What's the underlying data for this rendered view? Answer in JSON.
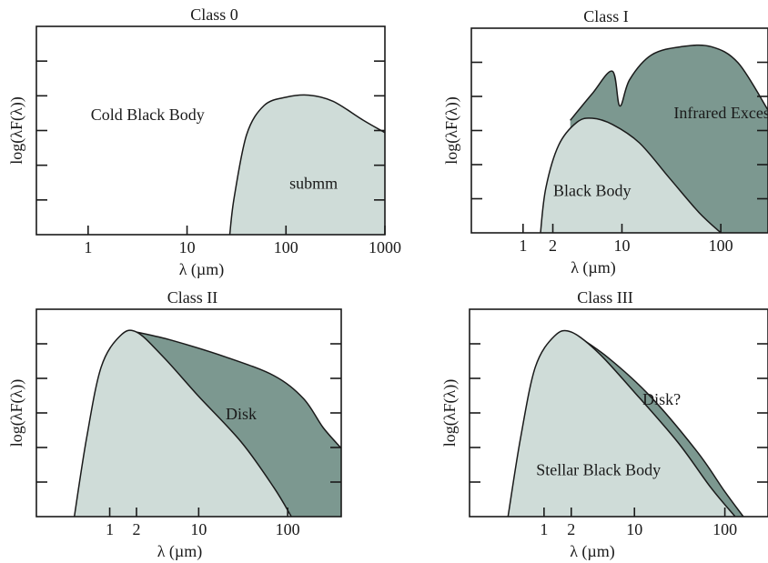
{
  "colors": {
    "light": "#cfdcd8",
    "dark": "#7c9890",
    "line": "#1a1a1a"
  },
  "chart_data": [
    {
      "type": "area",
      "title": "Class 0",
      "xlabel": "λ (µm)",
      "ylabel": "log(λF(λ))",
      "xscale": "log",
      "xticks": [
        "1",
        "10",
        "100",
        "1000"
      ],
      "xlim": [
        0.3,
        1000
      ],
      "ylim": [
        0,
        1
      ],
      "series": [
        {
          "color": "light",
          "points": [
            [
              27,
              0
            ],
            [
              30,
              0.18
            ],
            [
              40,
              0.48
            ],
            [
              60,
              0.62
            ],
            [
              100,
              0.66
            ],
            [
              170,
              0.67
            ],
            [
              300,
              0.64
            ],
            [
              600,
              0.55
            ],
            [
              1000,
              0.49
            ]
          ]
        }
      ],
      "annotations": [
        {
          "text": "Cold Black Body",
          "x": 4,
          "y": 0.55
        },
        {
          "text": "submm",
          "x": 190,
          "y": 0.22
        }
      ]
    },
    {
      "type": "area",
      "title": "Class I",
      "xlabel": "λ (µm)",
      "ylabel": "log(λF(λ))",
      "xscale": "log",
      "xticks": [
        "1",
        "2",
        "10",
        "100"
      ],
      "xlim": [
        0.3,
        300
      ],
      "ylim": [
        0,
        1
      ],
      "series": [
        {
          "color": "dark",
          "points": [
            [
              3,
              0.55
            ],
            [
              5,
              0.68
            ],
            [
              8,
              0.79
            ],
            [
              9.5,
              0.62
            ],
            [
              12,
              0.75
            ],
            [
              20,
              0.87
            ],
            [
              40,
              0.91
            ],
            [
              80,
              0.91
            ],
            [
              150,
              0.83
            ],
            [
              300,
              0.6
            ]
          ]
        },
        {
          "color": "light",
          "points": [
            [
              1.5,
              0
            ],
            [
              1.7,
              0.22
            ],
            [
              2.3,
              0.43
            ],
            [
              3.5,
              0.54
            ],
            [
              5,
              0.56
            ],
            [
              8,
              0.53
            ],
            [
              15,
              0.44
            ],
            [
              30,
              0.27
            ],
            [
              60,
              0.1
            ],
            [
              100,
              0
            ]
          ]
        }
      ],
      "annotations": [
        {
          "text": "Infrared Excess",
          "x": 110,
          "y": 0.56
        },
        {
          "text": "Black Body",
          "x": 5,
          "y": 0.18
        }
      ]
    },
    {
      "type": "area",
      "title": "Class II",
      "xlabel": "λ (µm)",
      "ylabel": "log(λF(λ))",
      "xscale": "log",
      "xticks": [
        "1",
        "2",
        "10",
        "100"
      ],
      "xlim": [
        0.15,
        400
      ],
      "ylim": [
        0,
        1
      ],
      "series": [
        {
          "color": "dark",
          "points": [
            [
              2,
              0.89
            ],
            [
              5,
              0.85
            ],
            [
              20,
              0.77
            ],
            [
              70,
              0.68
            ],
            [
              150,
              0.57
            ],
            [
              250,
              0.43
            ],
            [
              400,
              0.33
            ]
          ]
        },
        {
          "color": "light",
          "points": [
            [
              0.4,
              0
            ],
            [
              0.55,
              0.38
            ],
            [
              0.8,
              0.72
            ],
            [
              1.3,
              0.87
            ],
            [
              2,
              0.89
            ],
            [
              4,
              0.77
            ],
            [
              10,
              0.58
            ],
            [
              30,
              0.36
            ],
            [
              70,
              0.14
            ],
            [
              110,
              0
            ]
          ]
        }
      ],
      "annotations": [
        {
          "text": "Disk",
          "x": 30,
          "y": 0.47
        },
        {
          "text": "",
          "x": 0,
          "y": 0
        }
      ]
    },
    {
      "type": "area",
      "title": "Class III",
      "xlabel": "λ (µm)",
      "ylabel": "log(λF(λ))",
      "xscale": "log",
      "xticks": [
        "1",
        "2",
        "10",
        "100"
      ],
      "xlim": [
        0.15,
        300
      ],
      "ylim": [
        0,
        1
      ],
      "series": [
        {
          "color": "dark",
          "points": [
            [
              2,
              0.89
            ],
            [
              5,
              0.77
            ],
            [
              15,
              0.58
            ],
            [
              50,
              0.31
            ],
            [
              100,
              0.12
            ],
            [
              160,
              0
            ]
          ]
        },
        {
          "color": "light",
          "points": [
            [
              0.4,
              0
            ],
            [
              0.55,
              0.38
            ],
            [
              0.8,
              0.72
            ],
            [
              1.3,
              0.87
            ],
            [
              2,
              0.89
            ],
            [
              4,
              0.79
            ],
            [
              10,
              0.6
            ],
            [
              30,
              0.36
            ],
            [
              70,
              0.14
            ],
            [
              130,
              0
            ]
          ]
        }
      ],
      "annotations": [
        {
          "text": "Disk?",
          "x": 20,
          "y": 0.54
        },
        {
          "text": "Stellar Black Body",
          "x": 4,
          "y": 0.2
        }
      ]
    }
  ]
}
